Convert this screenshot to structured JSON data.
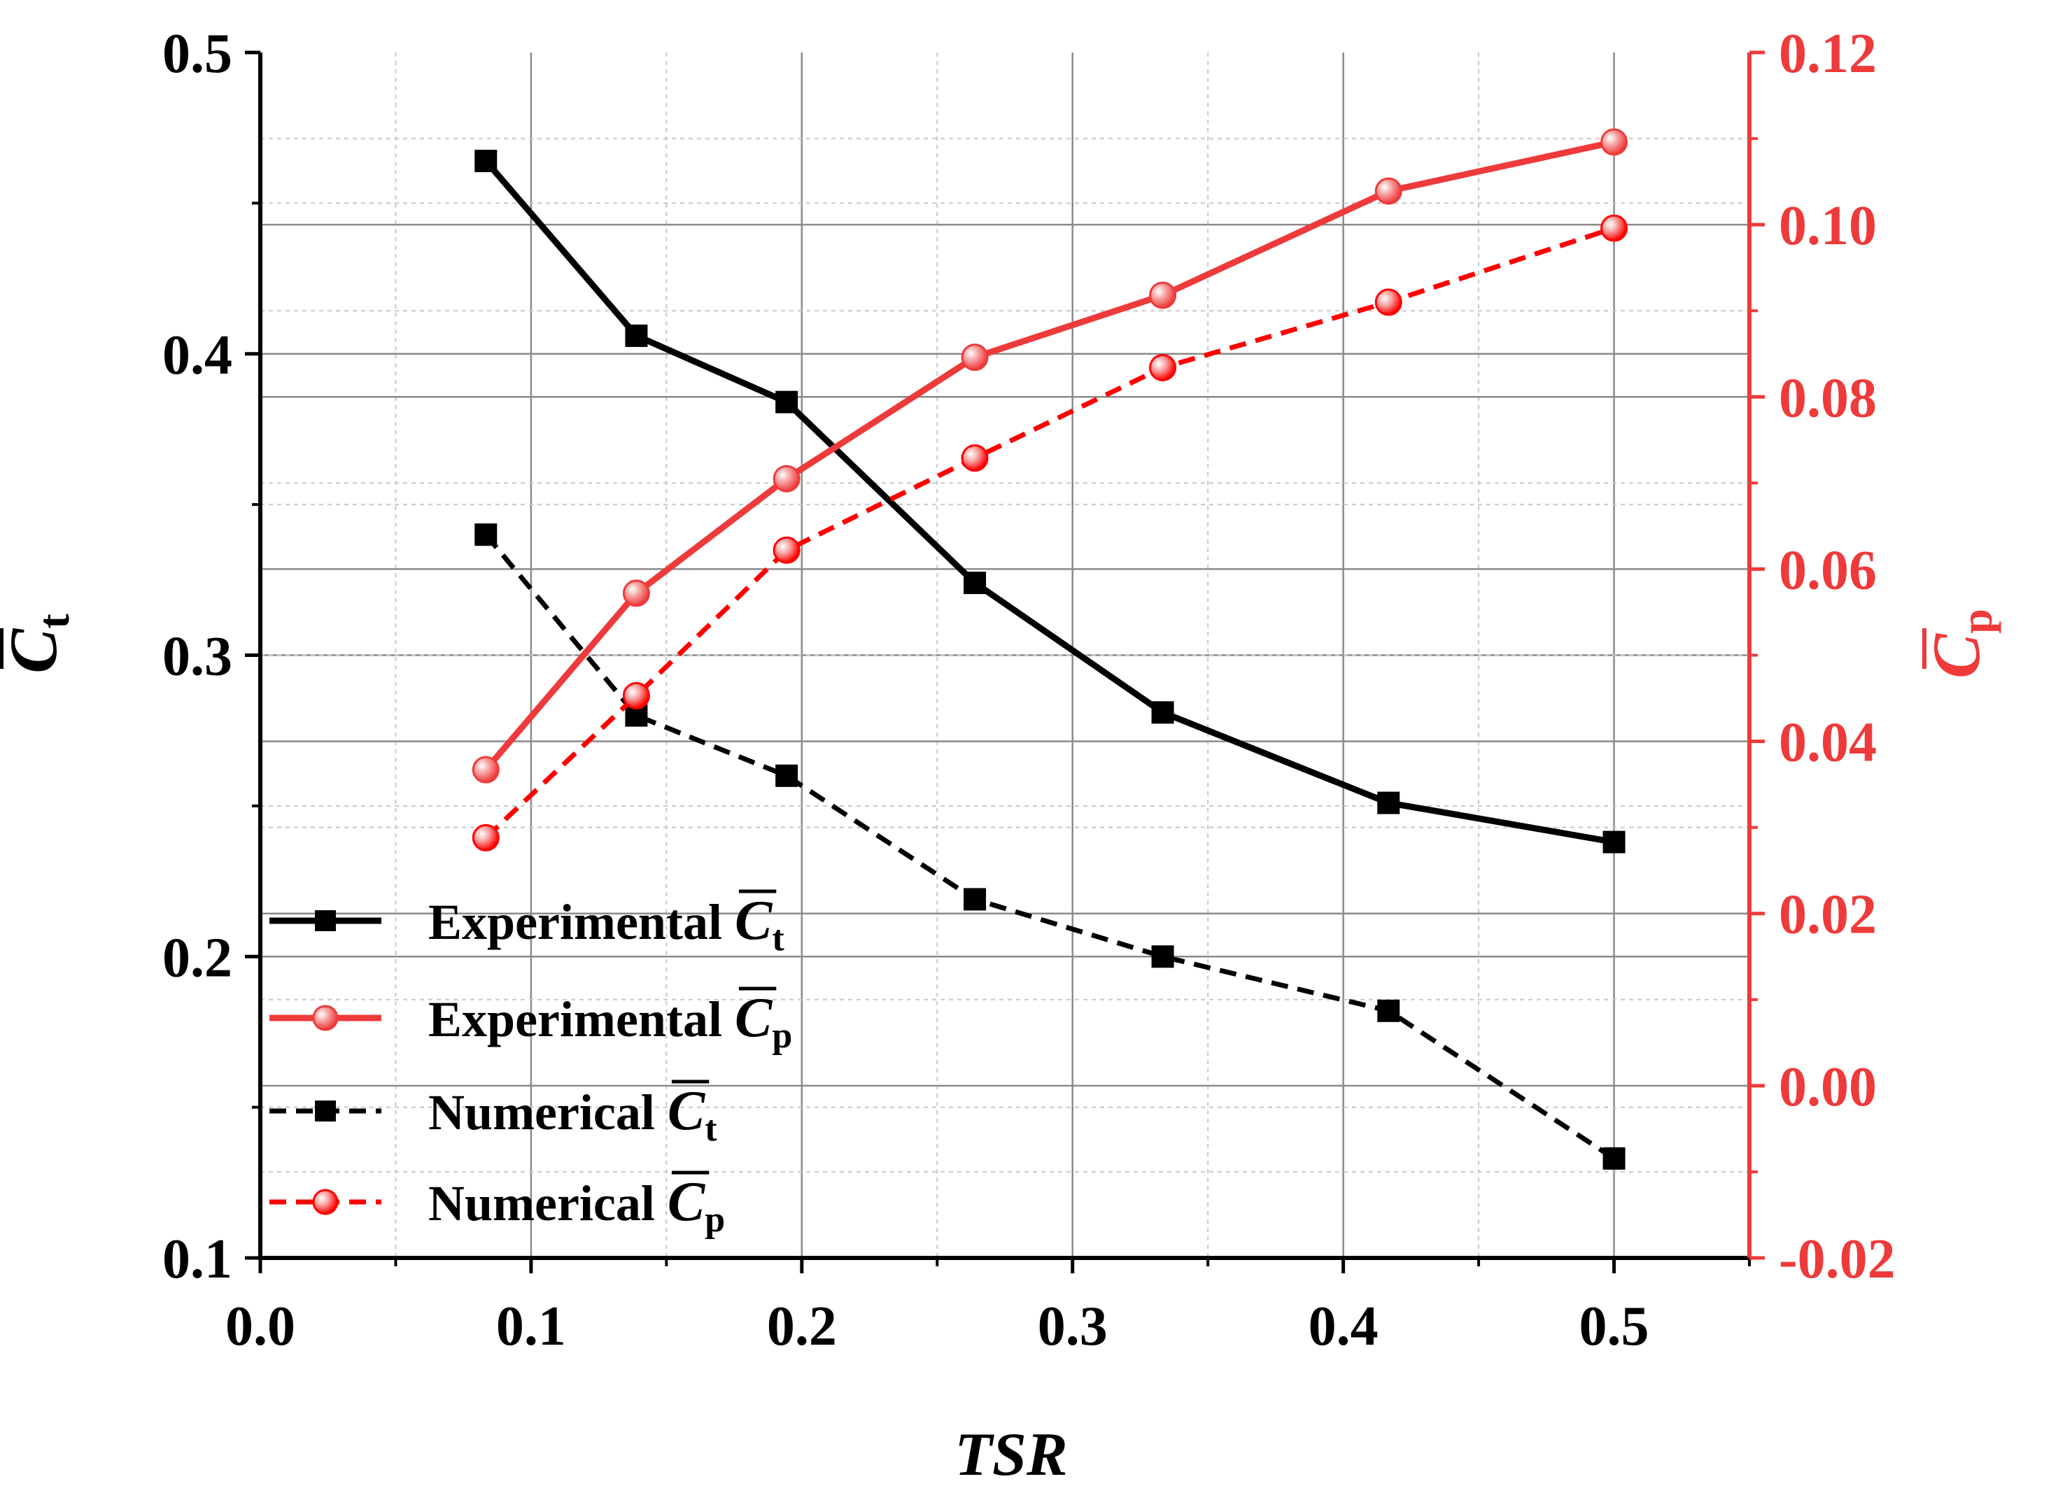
{
  "chart_data": {
    "type": "line",
    "x": [
      0.0833,
      0.1389,
      0.1944,
      0.2639,
      0.3333,
      0.4167,
      0.5
    ],
    "series": [
      {
        "name": "Experimental",
        "symbol": "C",
        "sub": "t",
        "axis": "left",
        "color": "#000000",
        "style": "solid",
        "marker": "square",
        "values": [
          0.464,
          0.406,
          0.384,
          0.324,
          0.281,
          0.251,
          0.238
        ]
      },
      {
        "name": "Experimental",
        "symbol": "C",
        "sub": "p",
        "axis": "right",
        "color": "#ee3a3a",
        "style": "solid",
        "marker": "circle",
        "values": [
          0.0367,
          0.0572,
          0.0705,
          0.0846,
          0.0918,
          0.1039,
          0.1096
        ]
      },
      {
        "name": "Numerical",
        "symbol": "C",
        "sub": "t",
        "axis": "left",
        "color": "#000000",
        "style": "dashed",
        "marker": "square",
        "values": [
          0.34,
          0.28,
          0.26,
          0.219,
          0.2,
          0.182,
          0.133
        ]
      },
      {
        "name": "Numerical",
        "symbol": "C",
        "sub": "p",
        "axis": "right",
        "color": "#ff0000",
        "style": "dashed",
        "marker": "circle",
        "values": [
          0.0288,
          0.0453,
          0.0622,
          0.0729,
          0.0834,
          0.091,
          0.0996
        ]
      }
    ],
    "xlabel": "TSR",
    "ylabel": {
      "symbol": "C",
      "sub": "t"
    },
    "y2label": {
      "symbol": "C",
      "sub": "p"
    },
    "xlim": [
      0.0,
      0.55
    ],
    "ylim": [
      0.1,
      0.5
    ],
    "y2lim": [
      -0.02,
      0.12
    ],
    "xticks": [
      "0.0",
      "0.1",
      "0.2",
      "0.3",
      "0.4",
      "0.5"
    ],
    "yticks": [
      "0.1",
      "0.2",
      "0.3",
      "0.4",
      "0.5"
    ],
    "y2ticks": [
      "-0.02",
      "0.00",
      "0.02",
      "0.04",
      "0.06",
      "0.08",
      "0.10",
      "0.12"
    ],
    "grid": true,
    "legend_position": "bottom-left",
    "colors": {
      "left_axis": "#000000",
      "right_axis": "#ee3a3a",
      "grid": "#8a8a8a"
    }
  }
}
